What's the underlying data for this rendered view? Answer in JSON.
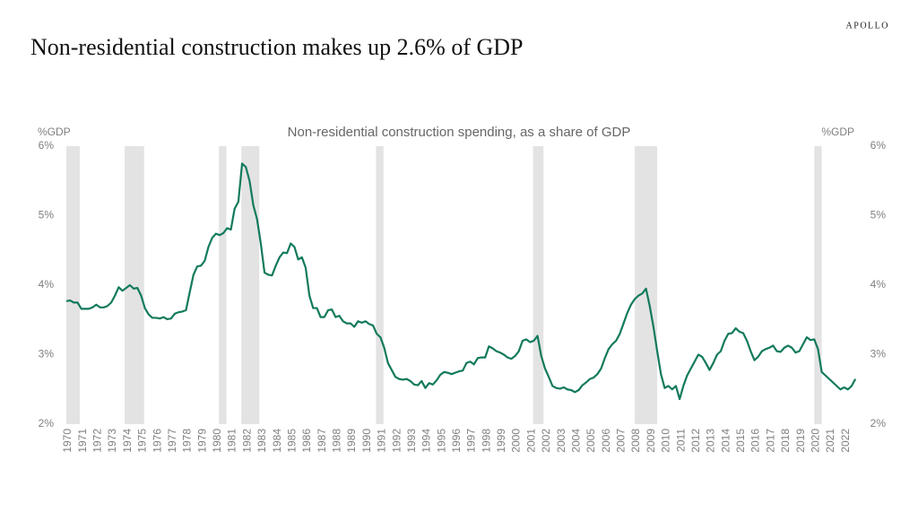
{
  "brand": "APOLLO",
  "chart_data": {
    "type": "line",
    "title": "Non-residential construction makes up 2.6% of GDP",
    "subtitle": "Non-residential construction spending, as a share of GDP",
    "y_axis_label": "%GDP",
    "y2_axis_label": "%GDP",
    "xlim": [
      1970,
      2022.8
    ],
    "xticks": [
      1970,
      1971,
      1972,
      1973,
      1974,
      1975,
      1976,
      1977,
      1978,
      1979,
      1980,
      1981,
      1982,
      1983,
      1984,
      1985,
      1986,
      1987,
      1988,
      1989,
      1990,
      1991,
      1992,
      1993,
      1994,
      1995,
      1996,
      1997,
      1998,
      1999,
      2000,
      2001,
      2002,
      2003,
      2004,
      2005,
      2006,
      2007,
      2008,
      2009,
      2010,
      2011,
      2012,
      2013,
      2014,
      2015,
      2016,
      2017,
      2018,
      2019,
      2020,
      2021,
      2022
    ],
    "ylim": [
      2,
      6
    ],
    "yticks": [
      {
        "value": 2,
        "label": "2%"
      },
      {
        "value": 3,
        "label": "3%"
      },
      {
        "value": 4,
        "label": "4%"
      },
      {
        "value": 5,
        "label": "5%"
      },
      {
        "value": 6,
        "label": "6%"
      }
    ],
    "y2lim": [
      2,
      6
    ],
    "y2ticks": [
      {
        "value": 2,
        "label": "2%"
      },
      {
        "value": 3,
        "label": "3%"
      },
      {
        "value": 4,
        "label": "4%"
      },
      {
        "value": 5,
        "label": "5%"
      },
      {
        "value": 6,
        "label": "6%"
      }
    ],
    "recessions": [
      [
        1970.0,
        1970.9
      ],
      [
        1973.9,
        1975.2
      ],
      [
        1980.2,
        1980.7
      ],
      [
        1981.7,
        1982.9
      ],
      [
        1990.7,
        1991.2
      ],
      [
        2001.2,
        2001.9
      ],
      [
        2008.0,
        2009.5
      ],
      [
        2020.0,
        2020.5
      ]
    ],
    "recession_color": "#e3e3e3",
    "x": [
      1970,
      1970.25,
      1970.5,
      1970.75,
      1971,
      1971.25,
      1971.5,
      1971.75,
      1972,
      1972.25,
      1972.5,
      1972.75,
      1973,
      1973.25,
      1973.5,
      1973.75,
      1974,
      1974.25,
      1974.5,
      1974.75,
      1975,
      1975.25,
      1975.5,
      1975.75,
      1976,
      1976.25,
      1976.5,
      1976.75,
      1977,
      1977.25,
      1977.5,
      1977.75,
      1978,
      1978.25,
      1978.5,
      1978.75,
      1979,
      1979.25,
      1979.5,
      1979.75,
      1980,
      1980.25,
      1980.5,
      1980.75,
      1981,
      1981.25,
      1981.5,
      1981.75,
      1982,
      1982.25,
      1982.5,
      1982.75,
      1983,
      1983.25,
      1983.5,
      1983.75,
      1984,
      1984.25,
      1984.5,
      1984.75,
      1985,
      1985.25,
      1985.5,
      1985.75,
      1986,
      1986.25,
      1986.5,
      1986.75,
      1987,
      1987.25,
      1987.5,
      1987.75,
      1988,
      1988.25,
      1988.5,
      1988.75,
      1989,
      1989.25,
      1989.5,
      1989.75,
      1990,
      1990.25,
      1990.5,
      1990.75,
      1991,
      1991.25,
      1991.5,
      1991.75,
      1992,
      1992.25,
      1992.5,
      1992.75,
      1993,
      1993.25,
      1993.5,
      1993.75,
      1994,
      1994.25,
      1994.5,
      1994.75,
      1995,
      1995.25,
      1995.5,
      1995.75,
      1996,
      1996.25,
      1996.5,
      1996.75,
      1997,
      1997.25,
      1997.5,
      1997.75,
      1998,
      1998.25,
      1998.5,
      1998.75,
      1999,
      1999.25,
      1999.5,
      1999.75,
      2000,
      2000.25,
      2000.5,
      2000.75,
      2001,
      2001.25,
      2001.5,
      2001.75,
      2002,
      2002.25,
      2002.5,
      2002.75,
      2003,
      2003.25,
      2003.5,
      2003.75,
      2004,
      2004.25,
      2004.5,
      2004.75,
      2005,
      2005.25,
      2005.5,
      2005.75,
      2006,
      2006.25,
      2006.5,
      2006.75,
      2007,
      2007.25,
      2007.5,
      2007.75,
      2008,
      2008.25,
      2008.5,
      2008.75,
      2009,
      2009.25,
      2009.5,
      2009.75,
      2010,
      2010.25,
      2010.5,
      2010.75,
      2011,
      2011.25,
      2011.5,
      2011.75,
      2012,
      2012.25,
      2012.5,
      2012.75,
      2013,
      2013.25,
      2013.5,
      2013.75,
      2014,
      2014.25,
      2014.5,
      2014.75,
      2015,
      2015.25,
      2015.5,
      2015.75,
      2016,
      2016.25,
      2016.5,
      2016.75,
      2017,
      2017.25,
      2017.5,
      2017.75,
      2018,
      2018.25,
      2018.5,
      2018.75,
      2019,
      2019.25,
      2019.5,
      2019.75,
      2020,
      2020.25,
      2020.5,
      2020.75,
      2021,
      2021.25,
      2021.5,
      2021.75,
      2022,
      2022.25,
      2022.5,
      2022.75
    ],
    "series": [
      {
        "color": "#127a5c",
        "values": [
          3.77,
          3.78,
          3.75,
          3.75,
          3.66,
          3.66,
          3.66,
          3.68,
          3.72,
          3.68,
          3.68,
          3.7,
          3.75,
          3.85,
          3.97,
          3.92,
          3.96,
          4.0,
          3.95,
          3.96,
          3.85,
          3.67,
          3.58,
          3.53,
          3.53,
          3.52,
          3.54,
          3.51,
          3.52,
          3.59,
          3.61,
          3.62,
          3.64,
          3.9,
          4.15,
          4.27,
          4.28,
          4.35,
          4.55,
          4.68,
          4.74,
          4.72,
          4.75,
          4.82,
          4.8,
          5.1,
          5.2,
          5.75,
          5.7,
          5.5,
          5.15,
          4.95,
          4.6,
          4.18,
          4.15,
          4.14,
          4.28,
          4.4,
          4.47,
          4.46,
          4.6,
          4.55,
          4.37,
          4.4,
          4.25,
          3.85,
          3.67,
          3.67,
          3.54,
          3.54,
          3.64,
          3.65,
          3.54,
          3.56,
          3.48,
          3.45,
          3.45,
          3.4,
          3.48,
          3.46,
          3.48,
          3.44,
          3.42,
          3.3,
          3.25,
          3.1,
          2.88,
          2.78,
          2.68,
          2.65,
          2.64,
          2.65,
          2.62,
          2.57,
          2.56,
          2.62,
          2.52,
          2.59,
          2.57,
          2.63,
          2.71,
          2.75,
          2.74,
          2.72,
          2.74,
          2.76,
          2.77,
          2.88,
          2.9,
          2.86,
          2.95,
          2.96,
          2.96,
          3.12,
          3.09,
          3.05,
          3.03,
          3.0,
          2.96,
          2.94,
          2.98,
          3.05,
          3.2,
          3.22,
          3.18,
          3.2,
          3.27,
          2.98,
          2.8,
          2.68,
          2.55,
          2.52,
          2.51,
          2.53,
          2.5,
          2.49,
          2.46,
          2.49,
          2.56,
          2.6,
          2.65,
          2.67,
          2.72,
          2.8,
          2.95,
          3.08,
          3.15,
          3.2,
          3.3,
          3.45,
          3.6,
          3.72,
          3.8,
          3.85,
          3.88,
          3.95,
          3.7,
          3.4,
          3.05,
          2.72,
          2.52,
          2.55,
          2.5,
          2.55,
          2.36,
          2.55,
          2.7,
          2.8,
          2.9,
          3.0,
          2.97,
          2.88,
          2.78,
          2.88,
          3.0,
          3.05,
          3.2,
          3.3,
          3.31,
          3.38,
          3.33,
          3.31,
          3.2,
          3.05,
          2.92,
          2.97,
          3.05,
          3.08,
          3.1,
          3.13,
          3.05,
          3.04,
          3.1,
          3.13,
          3.1,
          3.03,
          3.05,
          3.15,
          3.25,
          3.21,
          3.22,
          3.08,
          2.75,
          2.7,
          2.65,
          2.6,
          2.55,
          2.5,
          2.53,
          2.5,
          2.55,
          2.65
        ]
      }
    ]
  }
}
